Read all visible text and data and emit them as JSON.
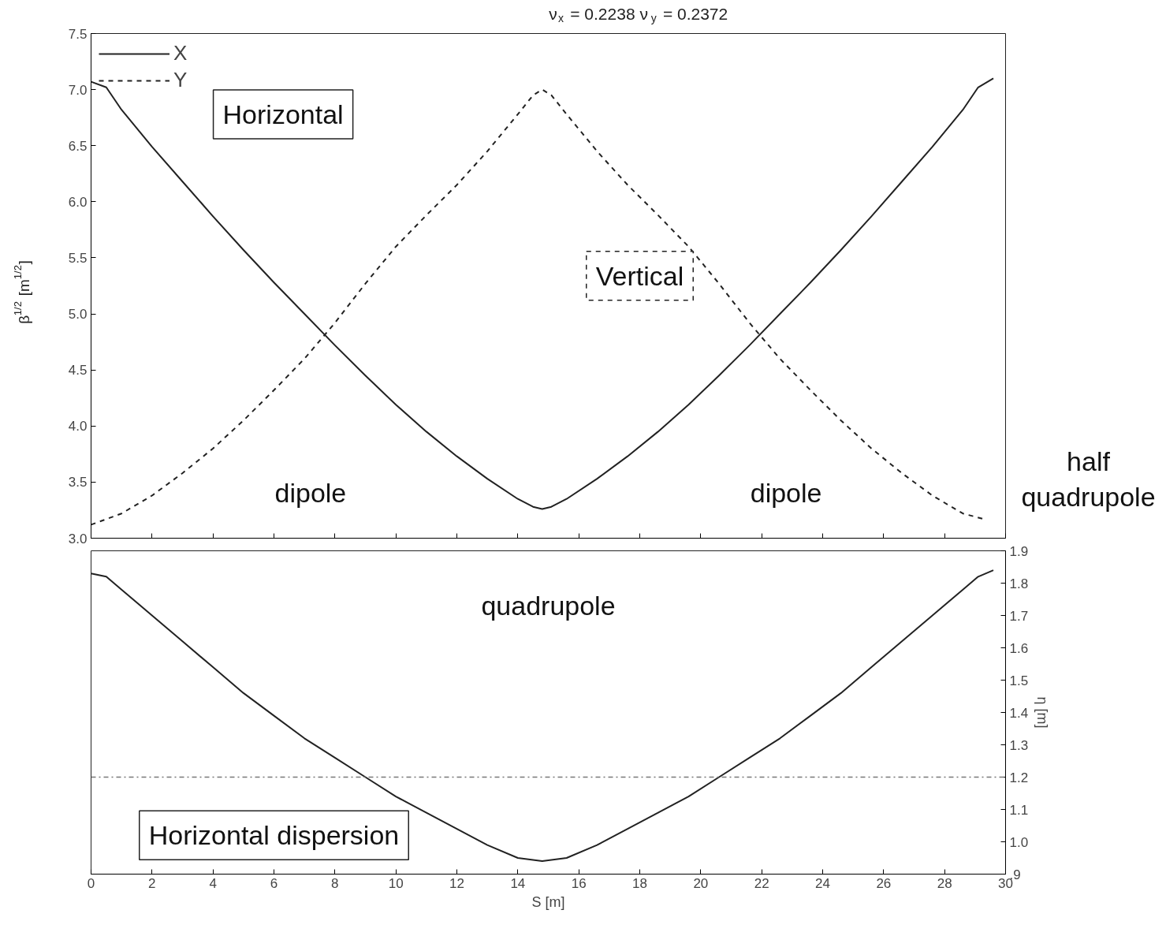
{
  "chart_data": [
    {
      "type": "line",
      "title": "ν$_{x}$ =   0.2238   ν$_{y}$ =   0.2372",
      "ylabel": "β$^{1/2}$ [m$^{1/2}$]",
      "xlim": [
        0,
        30
      ],
      "xticks": [
        0,
        2,
        4,
        6,
        8,
        10,
        12,
        14,
        16,
        18,
        20,
        22,
        24,
        26,
        28,
        30
      ],
      "ylim": [
        3.0,
        7.5
      ],
      "yticks": [
        {
          "value": 3.0,
          "label": "3.0"
        },
        3.5,
        {
          "value": 4.0,
          "label": "4.0"
        },
        4.5,
        {
          "value": 5.0,
          "label": "5.0"
        },
        5.5,
        {
          "value": 6.0,
          "label": "6.0"
        },
        6.5,
        {
          "value": 7.0,
          "label": "7.0"
        },
        7.5
      ],
      "tick_labels": "y",
      "legend": "top left",
      "marker": "none",
      "series": [
        {
          "name": "X",
          "color": "#222222",
          "line_style": "solid",
          "x": [
            0,
            0.5,
            1,
            2,
            3,
            4,
            5,
            6,
            7,
            8,
            9,
            10,
            11,
            12,
            13,
            14,
            14.5,
            14.8,
            15.1,
            15.6,
            16.6,
            17.6,
            18.6,
            19.6,
            20.6,
            21.6,
            22.6,
            23.6,
            24.6,
            25.6,
            26.6,
            27.6,
            28.6,
            29.1,
            29.6
          ],
          "values": [
            7.07,
            7.02,
            6.82,
            6.49,
            6.18,
            5.87,
            5.57,
            5.28,
            5.0,
            4.72,
            4.45,
            4.19,
            3.95,
            3.73,
            3.53,
            3.35,
            3.28,
            3.26,
            3.28,
            3.35,
            3.53,
            3.73,
            3.95,
            4.19,
            4.45,
            4.72,
            5.0,
            5.28,
            5.57,
            5.87,
            6.18,
            6.49,
            6.82,
            7.02,
            7.1
          ]
        },
        {
          "name": "Y",
          "color": "#222222",
          "line_style": "dashed",
          "x": [
            0,
            1,
            2,
            3,
            4,
            5,
            6,
            7,
            8,
            9,
            10,
            11,
            12,
            13,
            14,
            14.5,
            14.8,
            15.1,
            15.6,
            16.6,
            17.6,
            18.6,
            19.6,
            20.6,
            21.6,
            22.6,
            23.6,
            24.6,
            25.6,
            26.6,
            27.6,
            28.6,
            29.3
          ],
          "values": [
            3.12,
            3.22,
            3.38,
            3.58,
            3.8,
            4.05,
            4.32,
            4.6,
            4.92,
            5.27,
            5.6,
            5.88,
            6.15,
            6.45,
            6.78,
            6.95,
            7.0,
            6.95,
            6.78,
            6.45,
            6.15,
            5.88,
            5.6,
            5.27,
            4.92,
            4.6,
            4.32,
            4.05,
            3.8,
            3.58,
            3.38,
            3.22,
            3.17
          ]
        }
      ],
      "annotations": [
        "Horizontal",
        "Vertical",
        "dipole",
        "dipole",
        "half quadrupole"
      ]
    },
    {
      "type": "line",
      "xlabel": "S [m]",
      "y2label": "η [m]",
      "xlim": [
        0,
        30
      ],
      "xticks": [
        0,
        2,
        4,
        6,
        8,
        10,
        12,
        14,
        16,
        18,
        20,
        22,
        24,
        26,
        28,
        30
      ],
      "y2lim": [
        0.9,
        1.9
      ],
      "y2ticks": [
        {
          "value": 0.9,
          "label": ".9"
        },
        {
          "value": 1.0,
          "label": "1.0"
        },
        1.1,
        1.2,
        1.3,
        1.4,
        1.5,
        1.6,
        1.7,
        1.8,
        1.9
      ],
      "marker": "none",
      "series": [
        {
          "color": "#222222",
          "axis": "y2",
          "line_style": "solid",
          "x": [
            0,
            0.5,
            1,
            2,
            3,
            4,
            5,
            6,
            7,
            8,
            9,
            10,
            11,
            12,
            13,
            14,
            14.8,
            15.6,
            16.6,
            17.6,
            18.6,
            19.6,
            20.6,
            21.6,
            22.6,
            23.6,
            24.6,
            25.6,
            26.6,
            27.6,
            28.6,
            29.1,
            29.6
          ],
          "values": [
            1.83,
            1.82,
            1.78,
            1.7,
            1.62,
            1.54,
            1.46,
            1.39,
            1.32,
            1.26,
            1.2,
            1.14,
            1.09,
            1.04,
            0.99,
            0.95,
            0.94,
            0.95,
            0.99,
            1.04,
            1.09,
            1.14,
            1.2,
            1.26,
            1.32,
            1.39,
            1.46,
            1.54,
            1.62,
            1.7,
            1.78,
            1.82,
            1.84
          ]
        }
      ],
      "ref_lines": [
        {
          "axis": "y2",
          "value": 1.2,
          "label": null,
          "color": "#777777",
          "line_style": "dashdot"
        }
      ],
      "annotations": [
        "quadrupole",
        "Horizontal dispersion"
      ]
    }
  ]
}
